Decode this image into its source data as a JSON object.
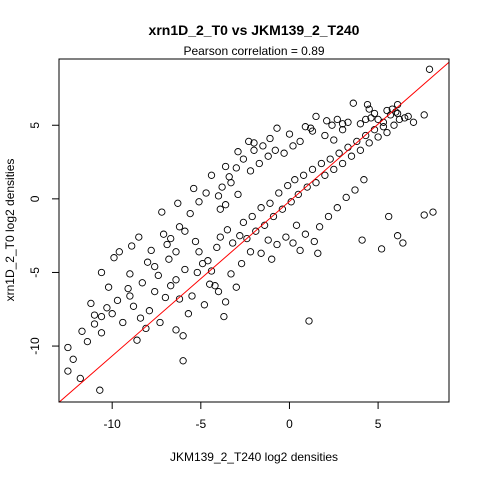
{
  "chart_data": {
    "type": "scatter",
    "title": "xrn1D_2_T0 vs JKM139_2_T240",
    "subtitle": "Pearson correlation =  0.89",
    "xlabel": "JKM139_2_T240 log2 densities",
    "ylabel": "xrn1D_2_T0 log2 densities",
    "xlim": [
      -13.0,
      9.0
    ],
    "ylim": [
      -13.8,
      9.5
    ],
    "xticks": [
      -10,
      -5,
      0,
      5
    ],
    "yticks": [
      -10,
      -5,
      0,
      5
    ],
    "grid": false,
    "point_style": "open-circle",
    "point_color": "#000000",
    "fit_line": {
      "color": "#ff0000",
      "intercept": -0.17,
      "slope": 1.05
    },
    "points": [
      [
        7.9,
        8.8
      ],
      [
        5.8,
        6.1
      ],
      [
        6.0,
        5.9
      ],
      [
        6.2,
        5.4
      ],
      [
        6.5,
        5.5
      ],
      [
        5.7,
        5.7
      ],
      [
        5.3,
        5.2
      ],
      [
        5.0,
        5.4
      ],
      [
        6.1,
        5.8
      ],
      [
        5.9,
        5.0
      ],
      [
        6.7,
        5.6
      ],
      [
        7.6,
        5.7
      ],
      [
        7.0,
        5.2
      ],
      [
        6.1,
        6.4
      ],
      [
        5.5,
        6.0
      ],
      [
        4.8,
        5.8
      ],
      [
        4.6,
        5.5
      ],
      [
        4.3,
        5.4
      ],
      [
        4.5,
        6.1
      ],
      [
        4.4,
        6.4
      ],
      [
        3.6,
        6.5
      ],
      [
        2.7,
        5.4
      ],
      [
        1.5,
        5.6
      ],
      [
        3.0,
        5.1
      ],
      [
        2.4,
        5.0
      ],
      [
        3.3,
        5.2
      ],
      [
        2.0,
        4.3
      ],
      [
        2.5,
        4.0
      ],
      [
        1.3,
        4.6
      ],
      [
        -0.7,
        4.8
      ],
      [
        -2.0,
        3.8
      ],
      [
        1.2,
        4.8
      ],
      [
        8.1,
        -0.9
      ],
      [
        7.6,
        -1.1
      ],
      [
        5.6,
        -1.2
      ],
      [
        6.1,
        -2.5
      ],
      [
        6.4,
        -3.0
      ],
      [
        5.2,
        -3.4
      ],
      [
        4.1,
        -2.8
      ],
      [
        1.6,
        -3.7
      ],
      [
        0.6,
        -3.5
      ],
      [
        1.4,
        -2.9
      ],
      [
        -1.6,
        -3.7
      ],
      [
        1.1,
        -8.3
      ],
      [
        -3.0,
        -6.0
      ],
      [
        -3.6,
        -7.0
      ],
      [
        -3.7,
        -8.0
      ],
      [
        -6.0,
        -11.0
      ],
      [
        -6.0,
        -9.3
      ],
      [
        -6.4,
        -8.9
      ],
      [
        -5.7,
        -7.8
      ],
      [
        -6.2,
        -6.8
      ],
      [
        -4.5,
        -5.8
      ],
      [
        -4.2,
        -5.9
      ],
      [
        -5.3,
        -2.9
      ],
      [
        -5.6,
        -1.0
      ],
      [
        -5.1,
        -0.2
      ],
      [
        -4.0,
        0.2
      ],
      [
        -4.7,
        0.4
      ],
      [
        -3.9,
        -0.7
      ],
      [
        -3.3,
        1.1
      ],
      [
        -2.9,
        0.3
      ],
      [
        -3.6,
        -0.4
      ],
      [
        -3.8,
        0.8
      ],
      [
        -7.2,
        -0.9
      ],
      [
        -6.2,
        -1.9
      ],
      [
        -6.7,
        -2.7
      ],
      [
        -6.4,
        -3.6
      ],
      [
        -7.1,
        -2.4
      ],
      [
        -5.9,
        -2.2
      ],
      [
        -5.1,
        -3.6
      ],
      [
        -4.6,
        -4.2
      ],
      [
        -6.8,
        -4.1
      ],
      [
        -7.8,
        -3.5
      ],
      [
        -8.5,
        -2.6
      ],
      [
        -8.9,
        -3.2
      ],
      [
        -8.0,
        -4.3
      ],
      [
        -9.0,
        -5.1
      ],
      [
        -9.6,
        -3.6
      ],
      [
        -9.9,
        -4.0
      ],
      [
        -10.6,
        -5.0
      ],
      [
        -10.2,
        -6.0
      ],
      [
        -11.2,
        -7.1
      ],
      [
        -11.0,
        -7.9
      ],
      [
        -10.6,
        -8.0
      ],
      [
        -10.6,
        -9.1
      ],
      [
        -11.4,
        -9.7
      ],
      [
        -11.7,
        -9.0
      ],
      [
        -12.2,
        -10.9
      ],
      [
        -12.5,
        -10.1
      ],
      [
        -11.8,
        -12.2
      ],
      [
        -12.5,
        -11.7
      ],
      [
        -10.7,
        -13.0
      ],
      [
        -9.4,
        -8.4
      ],
      [
        -10.0,
        -7.8
      ],
      [
        -8.8,
        -7.3
      ],
      [
        -9.0,
        -6.6
      ],
      [
        -8.1,
        -8.8
      ],
      [
        -8.4,
        -8.1
      ],
      [
        -7.9,
        -7.6
      ],
      [
        -7.6,
        -6.3
      ],
      [
        -7.0,
        -6.7
      ],
      [
        -6.7,
        -5.9
      ],
      [
        -6.4,
        -5.5
      ],
      [
        -7.4,
        -5.2
      ],
      [
        -5.9,
        -4.8
      ],
      [
        -5.2,
        -5.0
      ],
      [
        -4.9,
        -4.4
      ],
      [
        -4.4,
        -4.9
      ],
      [
        -4.1,
        -3.3
      ],
      [
        -3.9,
        -2.6
      ],
      [
        -3.5,
        -2.1
      ],
      [
        -3.2,
        -3.0
      ],
      [
        -2.8,
        -2.5
      ],
      [
        -2.6,
        -1.6
      ],
      [
        -2.4,
        -2.7
      ],
      [
        -2.1,
        -1.2
      ],
      [
        -1.9,
        -2.2
      ],
      [
        -1.6,
        -0.6
      ],
      [
        -1.4,
        -1.8
      ],
      [
        -1.1,
        -0.3
      ],
      [
        -0.9,
        -1.2
      ],
      [
        -0.6,
        0.4
      ],
      [
        -0.4,
        -0.7
      ],
      [
        -0.1,
        0.9
      ],
      [
        0.1,
        -0.2
      ],
      [
        0.3,
        1.3
      ],
      [
        0.5,
        0.3
      ],
      [
        0.8,
        1.6
      ],
      [
        1.0,
        0.8
      ],
      [
        1.3,
        2.0
      ],
      [
        1.5,
        1.1
      ],
      [
        1.8,
        2.4
      ],
      [
        2.0,
        1.6
      ],
      [
        2.3,
        2.7
      ],
      [
        2.5,
        2.0
      ],
      [
        2.8,
        3.1
      ],
      [
        3.0,
        2.4
      ],
      [
        3.3,
        3.5
      ],
      [
        3.5,
        2.9
      ],
      [
        3.8,
        3.9
      ],
      [
        4.0,
        3.3
      ],
      [
        4.3,
        4.3
      ],
      [
        4.5,
        3.8
      ],
      [
        4.8,
        4.7
      ],
      [
        5.0,
        4.2
      ],
      [
        5.3,
        4.9
      ],
      [
        5.5,
        4.5
      ],
      [
        -2.2,
        1.9
      ],
      [
        -1.7,
        2.4
      ],
      [
        -1.2,
        2.9
      ],
      [
        -0.8,
        3.3
      ],
      [
        -0.3,
        3.1
      ],
      [
        0.2,
        3.6
      ],
      [
        0.6,
        3.9
      ],
      [
        -2.6,
        2.7
      ],
      [
        -3.0,
        2.1
      ],
      [
        -3.4,
        1.5
      ],
      [
        -2.0,
        3.3
      ],
      [
        -1.5,
        3.6
      ],
      [
        1.7,
        -1.9
      ],
      [
        2.2,
        -1.2
      ],
      [
        2.7,
        -0.6
      ],
      [
        3.2,
        0.1
      ],
      [
        3.7,
        0.6
      ],
      [
        4.2,
        1.3
      ],
      [
        0.9,
        -2.4
      ],
      [
        0.4,
        -1.8
      ],
      [
        -0.2,
        -2.6
      ],
      [
        -0.7,
        -3.1
      ],
      [
        -1.2,
        -2.8
      ],
      [
        -6.9,
        -3.1
      ],
      [
        -7.6,
        -4.6
      ],
      [
        -8.3,
        -5.7
      ],
      [
        -9.1,
        -6.1
      ],
      [
        -9.7,
        -6.9
      ],
      [
        -10.3,
        -7.4
      ],
      [
        -11.0,
        -8.5
      ],
      [
        -8.6,
        -9.6
      ],
      [
        -7.3,
        -8.4
      ],
      [
        -5.5,
        -6.6
      ],
      [
        -4.8,
        -7.2
      ],
      [
        -4.0,
        -6.3
      ],
      [
        -3.3,
        -5.1
      ],
      [
        -2.7,
        -4.4
      ],
      [
        -2.2,
        -3.6
      ],
      [
        -1.0,
        -4.1
      ],
      [
        0.2,
        -3.0
      ],
      [
        -6.3,
        -0.3
      ],
      [
        -5.4,
        0.7
      ],
      [
        -4.4,
        1.6
      ],
      [
        -3.6,
        2.2
      ],
      [
        -2.9,
        3.2
      ],
      [
        -2.3,
        3.9
      ],
      [
        -1.1,
        4.1
      ],
      [
        0.0,
        4.4
      ],
      [
        0.9,
        4.9
      ],
      [
        2.1,
        5.3
      ],
      [
        3.0,
        4.7
      ],
      [
        4.0,
        5.1
      ]
    ]
  }
}
